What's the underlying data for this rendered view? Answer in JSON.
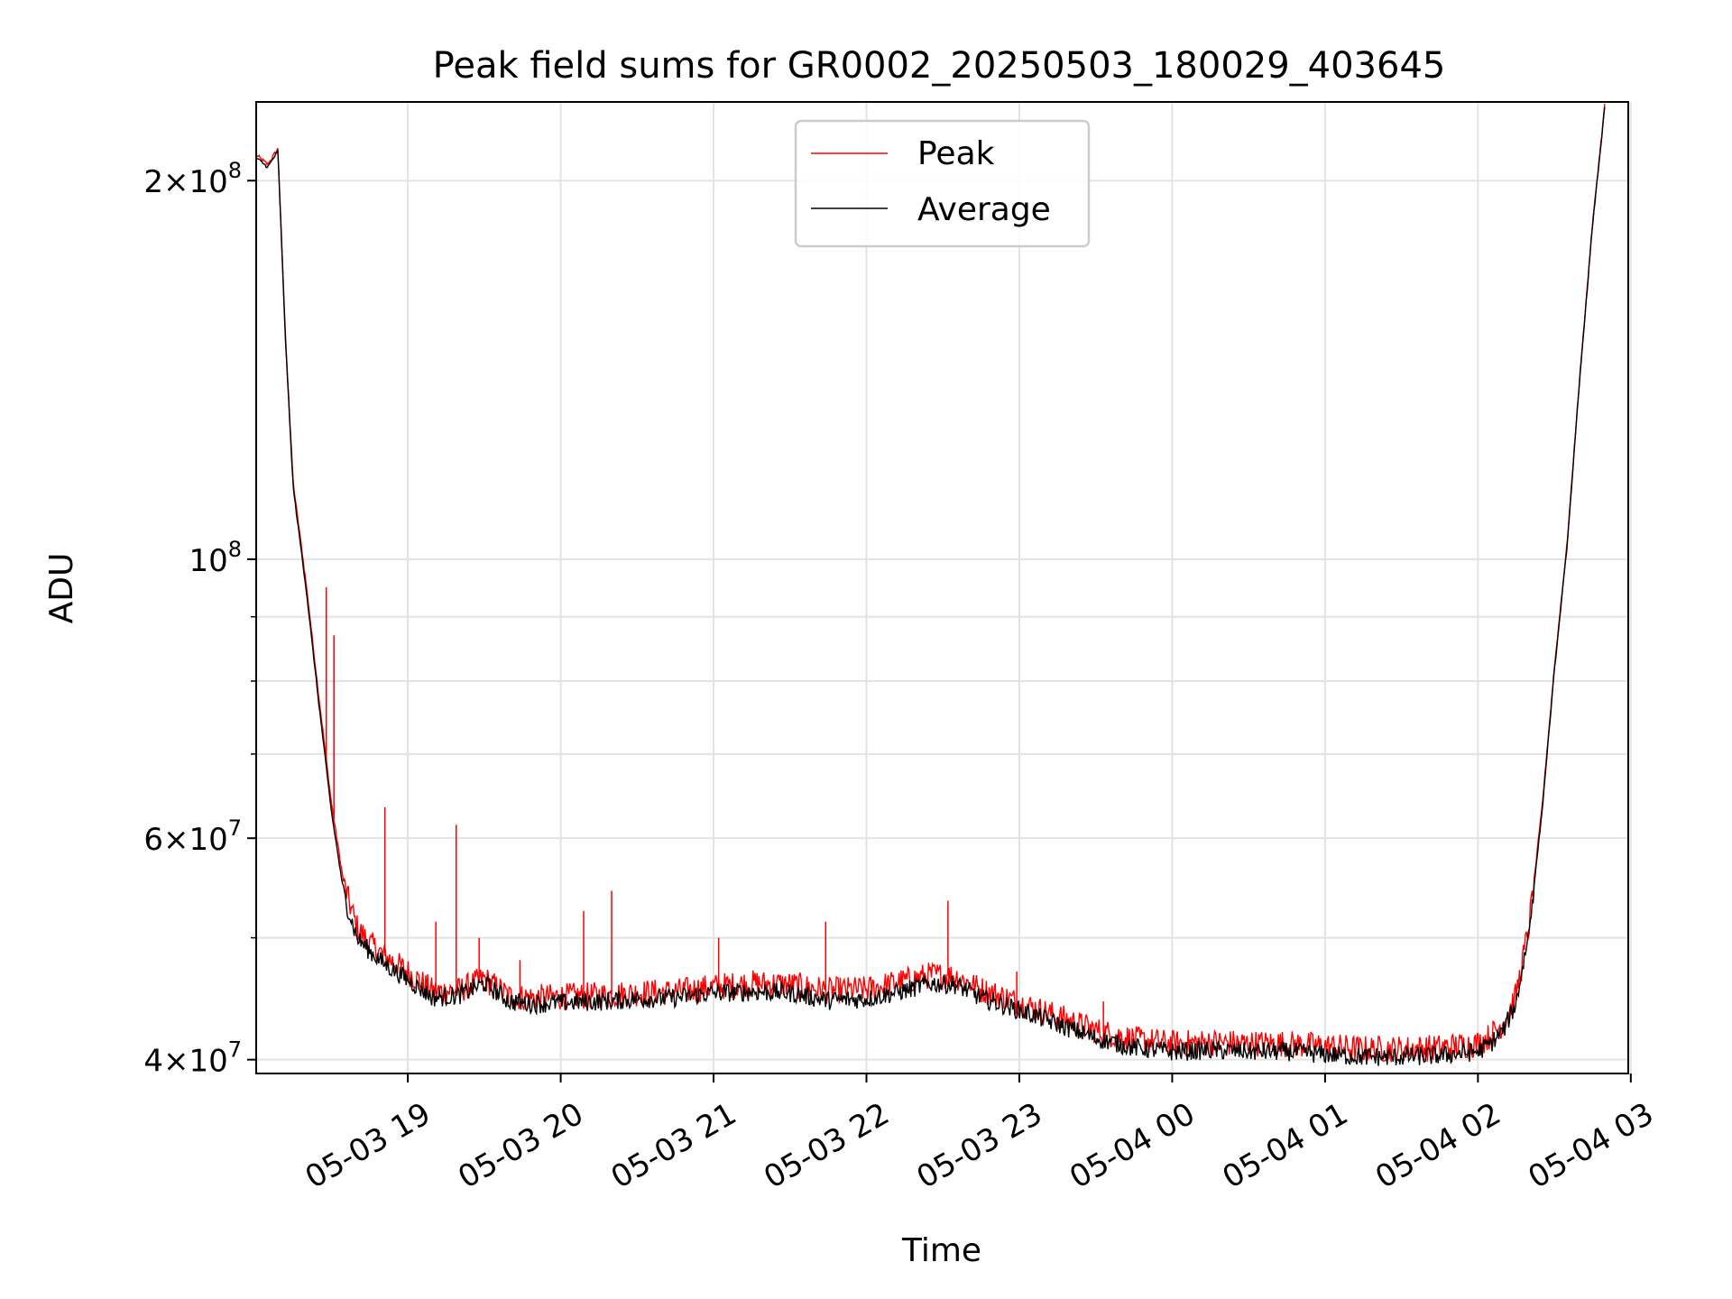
{
  "chart_data": {
    "type": "line",
    "title": "Peak field sums for GR0002_20250503_180029_403645",
    "xlabel": "Time",
    "ylabel": "ADU",
    "yscale": "log",
    "grid": true,
    "legend_placement": "upper center",
    "xlim": [
      "2025-05-03 18:00:29",
      "2025-05-04 02:59:00"
    ],
    "ylim": [
      39000000,
      231000000
    ],
    "x_ticks": [
      {
        "t": "2025-05-03 19:00",
        "label": "05-03 19"
      },
      {
        "t": "2025-05-03 20:00",
        "label": "05-03 20"
      },
      {
        "t": "2025-05-03 21:00",
        "label": "05-03 21"
      },
      {
        "t": "2025-05-03 22:00",
        "label": "05-03 22"
      },
      {
        "t": "2025-05-03 23:00",
        "label": "05-03 23"
      },
      {
        "t": "2025-05-04 00:00",
        "label": "05-04 00"
      },
      {
        "t": "2025-05-04 01:00",
        "label": "05-04 01"
      },
      {
        "t": "2025-05-04 02:00",
        "label": "05-04 02"
      },
      {
        "t": "2025-05-04 03:00",
        "label": "05-04 03"
      }
    ],
    "y_ticks": [
      {
        "v": 40000000,
        "mant": "4",
        "exp": "7"
      },
      {
        "v": 60000000,
        "mant": "6",
        "exp": "7"
      },
      {
        "v": 100000000,
        "mant": "",
        "exp": "8"
      },
      {
        "v": 200000000,
        "mant": "2",
        "exp": "8"
      }
    ],
    "y_minor_ticks": [
      50000000,
      70000000,
      80000000,
      90000000
    ],
    "series": [
      {
        "name": "Peak",
        "color": "#ff0000",
        "x": [
          "2025-05-03 18:00",
          "2025-05-03 18:05",
          "2025-05-03 18:09",
          "2025-05-03 18:12",
          "2025-05-03 18:15",
          "2025-05-03 18:20",
          "2025-05-03 18:25",
          "2025-05-03 18:30",
          "2025-05-03 18:35",
          "2025-05-03 18:40",
          "2025-05-03 18:45",
          "2025-05-03 18:50",
          "2025-05-03 19:00",
          "2025-05-03 19:10",
          "2025-05-03 19:20",
          "2025-05-03 19:30",
          "2025-05-03 19:40",
          "2025-05-03 19:50",
          "2025-05-03 20:00",
          "2025-05-03 20:15",
          "2025-05-03 20:30",
          "2025-05-03 20:45",
          "2025-05-03 21:00",
          "2025-05-03 21:15",
          "2025-05-03 21:30",
          "2025-05-03 21:45",
          "2025-05-03 22:00",
          "2025-05-03 22:15",
          "2025-05-03 22:25",
          "2025-05-03 22:35",
          "2025-05-03 22:45",
          "2025-05-03 23:00",
          "2025-05-03 23:15",
          "2025-05-03 23:30",
          "2025-05-03 23:45",
          "2025-05-04 00:00",
          "2025-05-04 00:15",
          "2025-05-04 00:30",
          "2025-05-04 00:45",
          "2025-05-04 01:00",
          "2025-05-04 01:15",
          "2025-05-04 01:30",
          "2025-05-04 01:45",
          "2025-05-04 02:00",
          "2025-05-04 02:05",
          "2025-05-04 02:10",
          "2025-05-04 02:15",
          "2025-05-04 02:20",
          "2025-05-04 02:25",
          "2025-05-04 02:30",
          "2025-05-04 02:35",
          "2025-05-04 02:40",
          "2025-05-04 02:45",
          "2025-05-04 02:50"
        ],
        "values": [
          210000000,
          206000000,
          212000000,
          150000000,
          115000000,
          96000000,
          78000000,
          64000000,
          55000000,
          51000000,
          49500000,
          48500000,
          47000000,
          45300000,
          45400000,
          46400000,
          44900000,
          44800000,
          44900000,
          45000000,
          45200000,
          45300000,
          45700000,
          46000000,
          45900000,
          45400000,
          45500000,
          46200000,
          46700000,
          46600000,
          45500000,
          44400000,
          43300000,
          42200000,
          41500000,
          41200000,
          41300000,
          41200000,
          41200000,
          41000000,
          40800000,
          40800000,
          40900000,
          41200000,
          41800000,
          42800000,
          45000000,
          51000000,
          63000000,
          82000000,
          103000000,
          140000000,
          185000000,
          232000000
        ]
      },
      {
        "name": "Average",
        "color": "#000000",
        "x": [
          "2025-05-03 18:00",
          "2025-05-03 18:05",
          "2025-05-03 18:09",
          "2025-05-03 18:12",
          "2025-05-03 18:15",
          "2025-05-03 18:20",
          "2025-05-03 18:25",
          "2025-05-03 18:30",
          "2025-05-03 18:35",
          "2025-05-03 18:40",
          "2025-05-03 18:45",
          "2025-05-03 18:50",
          "2025-05-03 19:00",
          "2025-05-03 19:10",
          "2025-05-03 19:20",
          "2025-05-03 19:30",
          "2025-05-03 19:40",
          "2025-05-03 19:50",
          "2025-05-03 20:00",
          "2025-05-03 20:15",
          "2025-05-03 20:30",
          "2025-05-03 20:45",
          "2025-05-03 21:00",
          "2025-05-03 21:15",
          "2025-05-03 21:30",
          "2025-05-03 21:45",
          "2025-05-03 22:00",
          "2025-05-03 22:15",
          "2025-05-03 22:25",
          "2025-05-03 22:35",
          "2025-05-03 22:45",
          "2025-05-03 23:00",
          "2025-05-03 23:15",
          "2025-05-03 23:30",
          "2025-05-03 23:45",
          "2025-05-04 00:00",
          "2025-05-04 00:15",
          "2025-05-04 00:30",
          "2025-05-04 00:45",
          "2025-05-04 01:00",
          "2025-05-04 01:15",
          "2025-05-04 01:30",
          "2025-05-04 01:45",
          "2025-05-04 02:00",
          "2025-05-04 02:05",
          "2025-05-04 02:10",
          "2025-05-04 02:15",
          "2025-05-04 02:20",
          "2025-05-04 02:25",
          "2025-05-04 02:30",
          "2025-05-04 02:35",
          "2025-05-04 02:40",
          "2025-05-04 02:45",
          "2025-05-04 02:50"
        ],
        "values": [
          209000000,
          205000000,
          211000000,
          149000000,
          114000000,
          95000000,
          77000000,
          63000000,
          54000000,
          50000000,
          48800000,
          47800000,
          46300000,
          44800000,
          45000000,
          46000000,
          44500000,
          44300000,
          44400000,
          44500000,
          44700000,
          44800000,
          45200000,
          45300000,
          45200000,
          44600000,
          44700000,
          45400000,
          46000000,
          45900000,
          44800000,
          43800000,
          42700000,
          41600000,
          40900000,
          40600000,
          40700000,
          40600000,
          40600000,
          40400000,
          40200000,
          40200000,
          40300000,
          40600000,
          41200000,
          42200000,
          44400000,
          50500000,
          62500000,
          81500000,
          102500000,
          139500000,
          184500000,
          231000000
        ]
      }
    ],
    "peak_spikes": [
      {
        "t": "2025-05-03 18:28",
        "v": 95000000
      },
      {
        "t": "2025-05-03 18:31",
        "v": 87000000
      },
      {
        "t": "2025-05-03 18:51",
        "v": 63500000
      },
      {
        "t": "2025-05-03 19:11",
        "v": 51500000
      },
      {
        "t": "2025-05-03 19:19",
        "v": 61500000
      },
      {
        "t": "2025-05-03 19:28",
        "v": 50000000
      },
      {
        "t": "2025-05-03 19:44",
        "v": 48000000
      },
      {
        "t": "2025-05-03 20:09",
        "v": 52500000
      },
      {
        "t": "2025-05-03 20:20",
        "v": 54500000
      },
      {
        "t": "2025-05-03 21:02",
        "v": 50000000
      },
      {
        "t": "2025-05-03 21:44",
        "v": 51500000
      },
      {
        "t": "2025-05-03 22:32",
        "v": 53500000
      },
      {
        "t": "2025-05-03 22:59",
        "v": 47000000
      },
      {
        "t": "2025-05-03 23:33",
        "v": 44500000
      }
    ]
  }
}
